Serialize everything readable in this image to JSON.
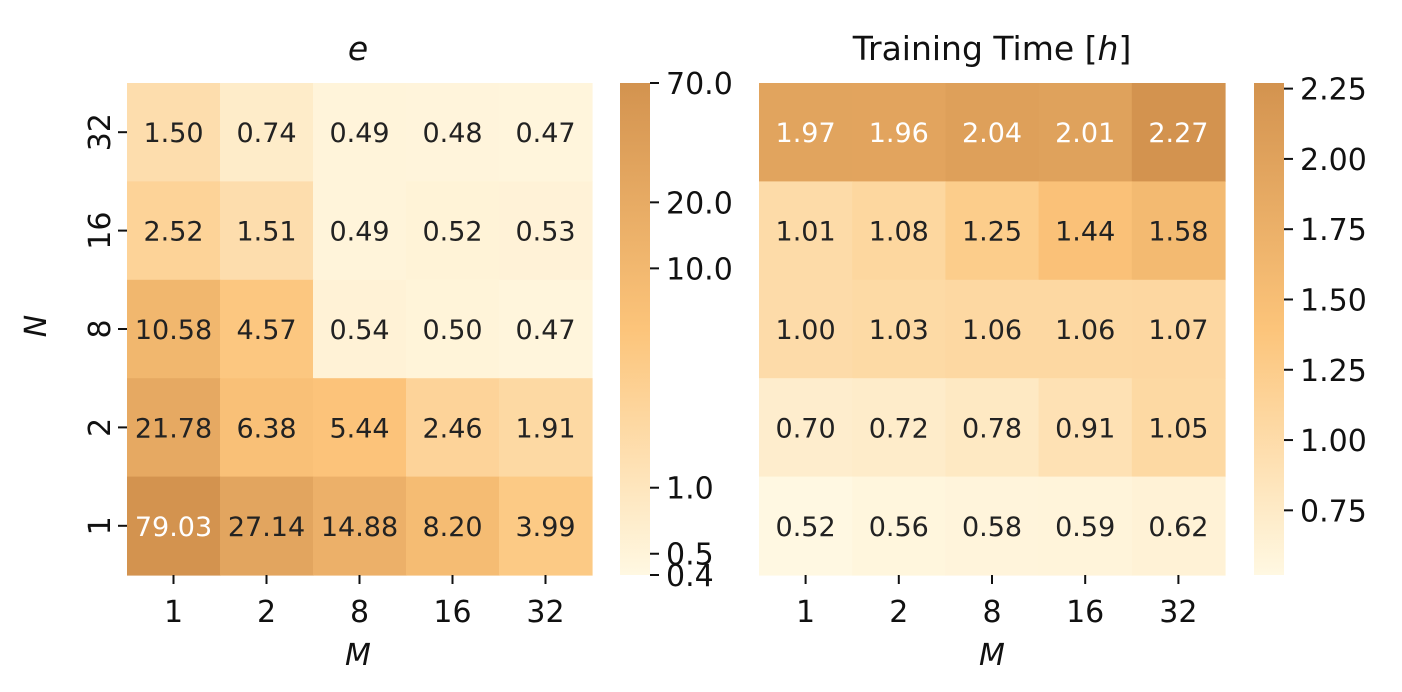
{
  "colors": {
    "low": "#fff8e2",
    "mid": "#fcc47a",
    "high": "#d3934f",
    "text_dark": "#222222",
    "text_light": "#ffffff",
    "tick": "#111111"
  },
  "chart_data": [
    {
      "type": "heatmap",
      "title": "e",
      "title_italic": true,
      "xlabel": "M",
      "ylabel": "N",
      "x_categories": [
        "1",
        "2",
        "8",
        "16",
        "32"
      ],
      "y_categories": [
        "32",
        "16",
        "8",
        "2",
        "1"
      ],
      "values": [
        [
          1.5,
          0.74,
          0.49,
          0.48,
          0.47
        ],
        [
          2.52,
          1.51,
          0.49,
          0.52,
          0.53
        ],
        [
          10.58,
          4.57,
          0.54,
          0.5,
          0.47
        ],
        [
          21.78,
          6.38,
          5.44,
          2.46,
          1.91
        ],
        [
          79.03,
          27.14,
          14.88,
          8.2,
          3.99
        ]
      ],
      "labels": [
        [
          "1.50",
          "0.74",
          "0.49",
          "0.48",
          "0.47"
        ],
        [
          "2.52",
          "1.51",
          "0.49",
          "0.52",
          "0.53"
        ],
        [
          "10.58",
          "4.57",
          "0.54",
          "0.50",
          "0.47"
        ],
        [
          "21.78",
          "6.38",
          "5.44",
          "2.46",
          "1.91"
        ],
        [
          "79.03",
          "27.14",
          "14.88",
          "8.20",
          "3.99"
        ]
      ],
      "colorbar": {
        "scale": "log",
        "range": [
          0.4,
          70.0
        ],
        "ticks": [
          0.4,
          0.5,
          1.0,
          10.0,
          20.0,
          70.0
        ],
        "tick_labels": [
          "0.4",
          "0.5",
          "1.0",
          "10.0",
          "20.0",
          "70.0"
        ]
      },
      "grid": false
    },
    {
      "type": "heatmap",
      "title_prefix": "Training Time [",
      "title_var": "h",
      "title_suffix": "]",
      "xlabel": "M",
      "x_categories": [
        "1",
        "2",
        "8",
        "16",
        "32"
      ],
      "y_categories": [
        "32",
        "16",
        "8",
        "2",
        "1"
      ],
      "values": [
        [
          1.97,
          1.96,
          2.04,
          2.01,
          2.27
        ],
        [
          1.01,
          1.08,
          1.25,
          1.44,
          1.58
        ],
        [
          1.0,
          1.03,
          1.06,
          1.06,
          1.07
        ],
        [
          0.7,
          0.72,
          0.78,
          0.91,
          1.05
        ],
        [
          0.52,
          0.56,
          0.58,
          0.59,
          0.62
        ]
      ],
      "labels": [
        [
          "1.97",
          "1.96",
          "2.04",
          "2.01",
          "2.27"
        ],
        [
          "1.01",
          "1.08",
          "1.25",
          "1.44",
          "1.58"
        ],
        [
          "1.00",
          "1.03",
          "1.06",
          "1.06",
          "1.07"
        ],
        [
          "0.70",
          "0.72",
          "0.78",
          "0.91",
          "1.05"
        ],
        [
          "0.52",
          "0.56",
          "0.58",
          "0.59",
          "0.62"
        ]
      ],
      "colorbar": {
        "scale": "linear",
        "range": [
          0.52,
          2.27
        ],
        "ticks": [
          0.75,
          1.0,
          1.25,
          1.5,
          1.75,
          2.0,
          2.25
        ],
        "tick_labels": [
          "0.75",
          "1.00",
          "1.25",
          "1.50",
          "1.75",
          "2.00",
          "2.25"
        ]
      },
      "grid": false
    }
  ]
}
